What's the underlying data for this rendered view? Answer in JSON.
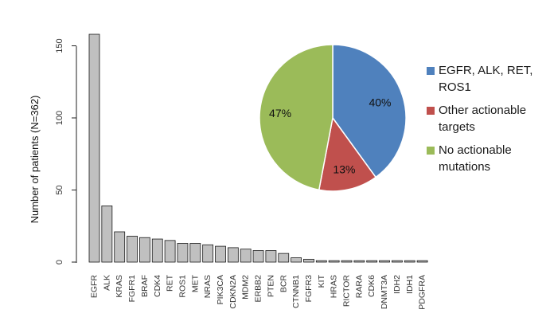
{
  "chart_data": [
    {
      "type": "bar",
      "ylabel": "Number of patients (N=362)",
      "ylim": [
        0,
        160
      ],
      "yticks": [
        "0",
        "50",
        "100",
        "150"
      ],
      "categories": [
        "EGFR",
        "ALK",
        "KRAS",
        "FGFR1",
        "BRAF",
        "CDK4",
        "RET",
        "ROS1",
        "MET",
        "NRAS",
        "PIK3CA",
        "CDKN2A",
        "MDM2",
        "ERBB2",
        "PTEN",
        "BCR",
        "CTNNB1",
        "FGFR3",
        "KIT",
        "HRAS",
        "RICTOR",
        "RARA",
        "CDK6",
        "DNMT3A",
        "IDH2",
        "IDH1",
        "PDGFRA"
      ],
      "values": [
        158,
        39,
        21,
        18,
        17,
        16,
        15,
        13,
        13,
        12,
        11,
        10,
        9,
        8,
        8,
        6,
        3,
        2,
        1,
        1,
        1,
        1,
        1,
        1,
        1,
        1,
        1
      ],
      "bar_color": "#c0c0c0",
      "bar_edge": "#1a1a1a",
      "grid": false
    },
    {
      "type": "pie",
      "categories": [
        "EGFR, ALK, RET, ROS1",
        "Other actionable targets",
        "No actionable mutations"
      ],
      "values": [
        40,
        13,
        47
      ],
      "labels": [
        "40%",
        "13%",
        "47%"
      ],
      "colors": [
        "#4f81bd",
        "#c0504d",
        "#9bbb59"
      ],
      "legend_position": "right"
    }
  ]
}
